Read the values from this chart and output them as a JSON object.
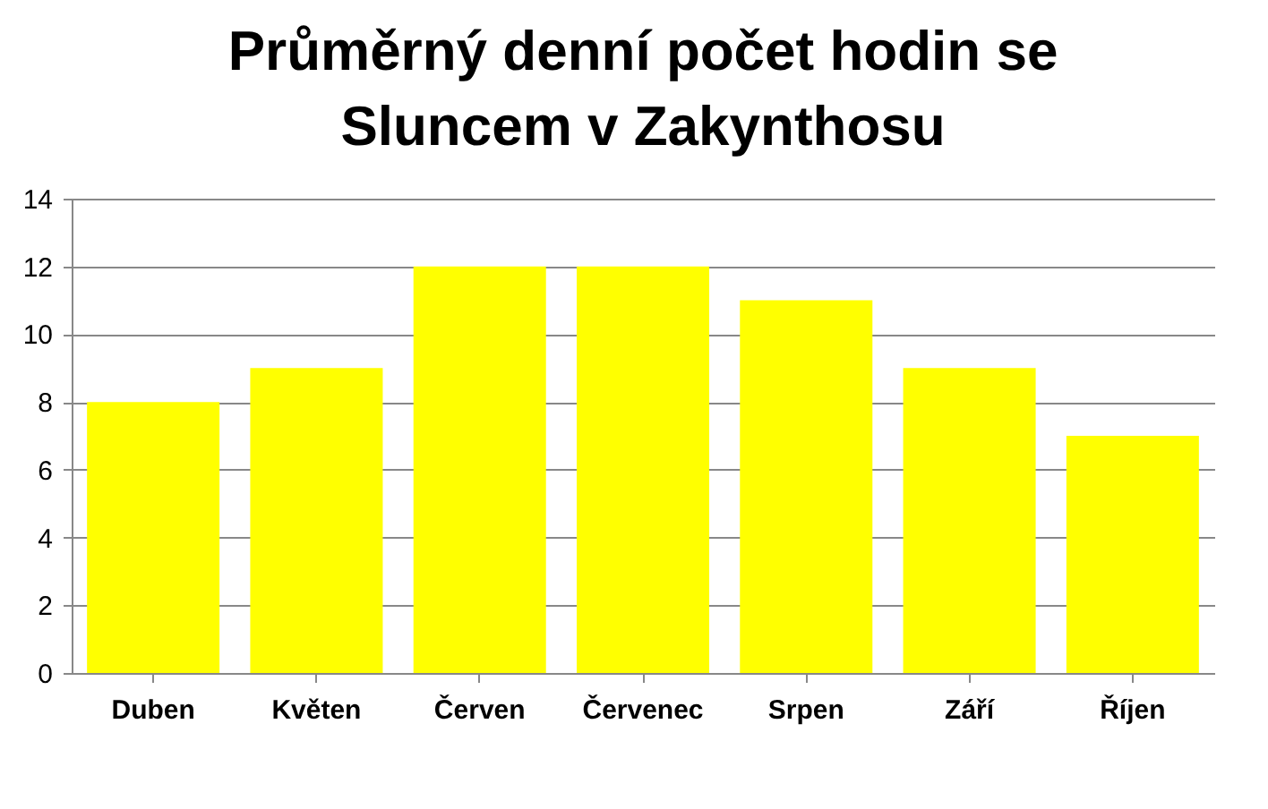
{
  "chart_data": {
    "type": "bar",
    "title": "Průměrný denní počet hodin se\nSluncem v Zakynthosu",
    "categories": [
      "Duben",
      "Květen",
      "Červen",
      "Červenec",
      "Srpen",
      "Září",
      "Říjen"
    ],
    "values": [
      8,
      9,
      12,
      12,
      11,
      9,
      7
    ],
    "color": "#ffff00",
    "ylim": [
      0,
      14
    ],
    "yticks": [
      0,
      2,
      4,
      6,
      8,
      10,
      12,
      14
    ],
    "grid": "y"
  }
}
